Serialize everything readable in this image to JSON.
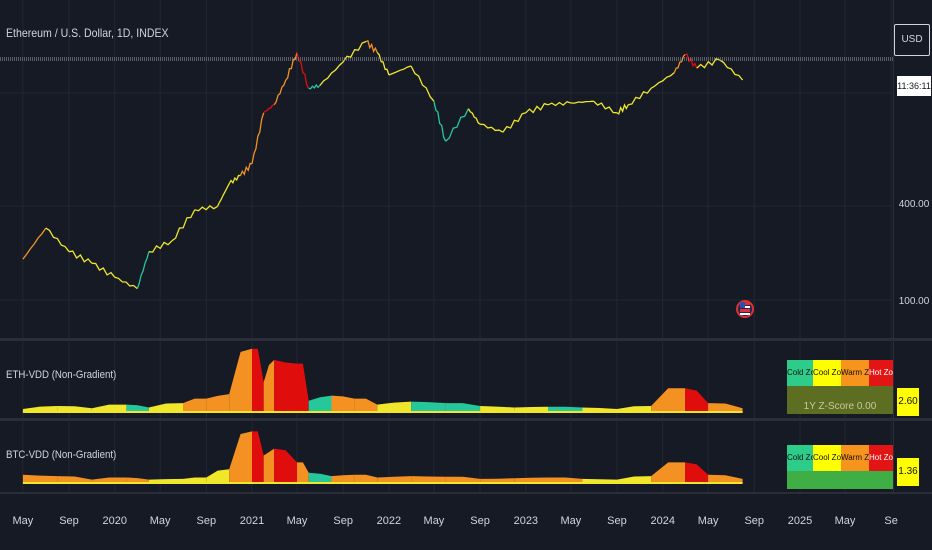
{
  "header": {
    "symbol_title": "Ethereum / U.S. Dollar, 1D, INDEX",
    "currency": "USD",
    "countdown": "11:36:11"
  },
  "price_axis": {
    "labels": [
      "400.00",
      "100.00"
    ]
  },
  "panes": {
    "eth": {
      "title": "ETH-VDD (Non-Gradient)",
      "value": "2.60",
      "zscore_text": "1Y Z-Score 0.00"
    },
    "btc": {
      "title": "BTC-VDD (Non-Gradient)",
      "value": "1.36"
    }
  },
  "zones": [
    {
      "label": "Cold Zone",
      "color": "#2ecc8a"
    },
    {
      "label": "Cool Zone",
      "color": "#ffff00"
    },
    {
      "label": "Warm Zone",
      "color": "#f7941d"
    },
    {
      "label": "Hot Zone",
      "color": "#e31414"
    }
  ],
  "colors": {
    "background": "#161a25",
    "grid": "#232734",
    "cold": "#26c79a",
    "cool": "#f0e62a",
    "warm": "#f39222",
    "hot": "#e00d0d",
    "zscore_band": "#5d6e23",
    "zscore_band_btc": "#3fae45"
  },
  "chart_data": [
    {
      "type": "line",
      "title": "Ethereum / U.S. Dollar, 1D, INDEX",
      "log_scale": true,
      "x": [
        "2019-05",
        "2019-07",
        "2019-09",
        "2019-11",
        "2020-01",
        "2020-03",
        "2020-04",
        "2020-06",
        "2020-08",
        "2020-10",
        "2020-11",
        "2020-12",
        "2021-01",
        "2021-02",
        "2021-03",
        "2021-04",
        "2021-05",
        "2021-06",
        "2021-07",
        "2021-09",
        "2021-11",
        "2021-12",
        "2022-01",
        "2022-03",
        "2022-05",
        "2022-06",
        "2022-08",
        "2022-09",
        "2022-11",
        "2023-01",
        "2023-03",
        "2023-05",
        "2023-07",
        "2023-09",
        "2023-10",
        "2023-12",
        "2024-02",
        "2024-03",
        "2024-04",
        "2024-06",
        "2024-08"
      ],
      "values": [
        170,
        290,
        190,
        160,
        130,
        110,
        190,
        240,
        380,
        400,
        560,
        630,
        750,
        1600,
        1800,
        2600,
        3900,
        2300,
        2400,
        3400,
        4600,
        3900,
        2800,
        3200,
        1900,
        1050,
        1700,
        1350,
        1200,
        1600,
        1800,
        1850,
        1900,
        1600,
        1800,
        2300,
        2900,
        3800,
        3100,
        3500,
        2600
      ],
      "zones": [
        "warm",
        "cool",
        "cool",
        "cool",
        "cool",
        "cold",
        "cool",
        "cool",
        "cool",
        "cool",
        "cool",
        "warm",
        "warm",
        "hot",
        "warm",
        "warm",
        "hot",
        "cold",
        "cool",
        "cool",
        "warm",
        "cool",
        "cool",
        "cool",
        "cold",
        "cold",
        "cool",
        "cool",
        "cool",
        "cool",
        "cool",
        "cool",
        "cool",
        "cool",
        "cool",
        "cool",
        "warm",
        "hot",
        "cool",
        "cool",
        "cool"
      ],
      "y_ticks": [
        400,
        100
      ],
      "x_ticks": [
        "May",
        "Sep",
        "2020",
        "May",
        "Sep",
        "2021",
        "May",
        "Sep",
        "2022",
        "May",
        "Sep",
        "2023",
        "May",
        "Sep",
        "2024",
        "May",
        "Sep",
        "2025",
        "May",
        "Se"
      ]
    },
    {
      "type": "area",
      "title": "ETH-VDD (Non-Gradient)",
      "x": [
        "2019-05",
        "2019-08",
        "2019-11",
        "2020-02",
        "2020-04",
        "2020-07",
        "2020-09",
        "2020-11",
        "2021-01",
        "2021-02",
        "2021-03",
        "2021-05",
        "2021-06",
        "2021-08",
        "2021-10",
        "2021-12",
        "2022-03",
        "2022-06",
        "2022-09",
        "2022-12",
        "2023-03",
        "2023-06",
        "2023-09",
        "2023-12",
        "2024-03",
        "2024-05",
        "2024-08"
      ],
      "values": [
        0.4,
        0.8,
        0.5,
        1.0,
        0.6,
        1.2,
        1.8,
        2.4,
        8.5,
        4.0,
        7.0,
        6.5,
        1.5,
        2.2,
        1.8,
        1.0,
        1.4,
        1.2,
        0.8,
        0.6,
        0.7,
        0.6,
        0.4,
        0.8,
        3.2,
        1.2,
        0.5
      ],
      "zones": [
        "cool",
        "cool",
        "cool",
        "cold",
        "cool",
        "warm",
        "warm",
        "warm",
        "hot",
        "warm",
        "hot",
        "hot",
        "cold",
        "warm",
        "warm",
        "cool",
        "cold",
        "cold",
        "cool",
        "cool",
        "cold",
        "cool",
        "cool",
        "warm",
        "hot",
        "warm",
        "cool"
      ],
      "last_value": 2.6
    },
    {
      "type": "area",
      "title": "BTC-VDD (Non-Gradient)",
      "x": [
        "2019-05",
        "2019-08",
        "2019-11",
        "2020-02",
        "2020-04",
        "2020-07",
        "2020-09",
        "2020-11",
        "2021-01",
        "2021-02",
        "2021-03",
        "2021-05",
        "2021-06",
        "2021-08",
        "2021-10",
        "2021-12",
        "2022-03",
        "2022-06",
        "2022-09",
        "2022-12",
        "2023-03",
        "2023-06",
        "2023-09",
        "2023-12",
        "2024-03",
        "2024-05",
        "2024-08"
      ],
      "values": [
        1.2,
        1.0,
        0.5,
        0.8,
        0.5,
        0.6,
        0.8,
        2.0,
        7.5,
        4.0,
        5.0,
        3.0,
        1.5,
        1.0,
        1.2,
        0.8,
        1.0,
        0.9,
        0.6,
        0.7,
        0.8,
        0.6,
        0.5,
        1.0,
        3.0,
        1.2,
        0.6
      ],
      "zones": [
        "warm",
        "warm",
        "warm",
        "warm",
        "cool",
        "cool",
        "cool",
        "warm",
        "hot",
        "warm",
        "hot",
        "warm",
        "cold",
        "warm",
        "warm",
        "warm",
        "warm",
        "warm",
        "warm",
        "warm",
        "warm",
        "cool",
        "cool",
        "warm",
        "hot",
        "warm",
        "cool"
      ],
      "last_value": 1.36
    }
  ]
}
